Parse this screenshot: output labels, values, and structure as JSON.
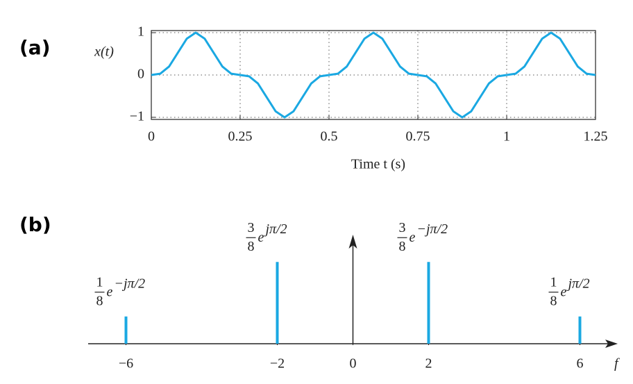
{
  "charts": [
    {
      "panel_label": "(a)",
      "chart_data": {
        "type": "line",
        "ylabel": "x(t)",
        "xlabel": "Time t (s)",
        "x": [
          0,
          0.025,
          0.05,
          0.075,
          0.1,
          0.125,
          0.15,
          0.175,
          0.2,
          0.225,
          0.25,
          0.275,
          0.3,
          0.325,
          0.35,
          0.375,
          0.4,
          0.425,
          0.45,
          0.475,
          0.5,
          0.525,
          0.55,
          0.575,
          0.6,
          0.625,
          0.65,
          0.675,
          0.7,
          0.725,
          0.75,
          0.775,
          0.8,
          0.825,
          0.85,
          0.875,
          0.9,
          0.925,
          0.95,
          0.975,
          1,
          1.025,
          1.05,
          1.075,
          1.1,
          1.125,
          1.15,
          1.175,
          1.2,
          1.225,
          1.25
        ],
        "series": [
          {
            "color": "#1aa8e2",
            "values": [
              0,
              0.03,
              0.2,
              0.53,
              0.86,
              1,
              0.86,
              0.53,
              0.2,
              0.03,
              0,
              -0.03,
              -0.2,
              -0.53,
              -0.86,
              -1,
              -0.86,
              -0.53,
              -0.2,
              -0.03,
              0,
              0.03,
              0.2,
              0.53,
              0.86,
              1,
              0.86,
              0.53,
              0.2,
              0.03,
              0,
              -0.03,
              -0.2,
              -0.53,
              -0.86,
              -1,
              -0.86,
              -0.53,
              -0.2,
              -0.03,
              0,
              0.03,
              0.2,
              0.53,
              0.86,
              1,
              0.86,
              0.53,
              0.2,
              0.03,
              0
            ]
          }
        ],
        "xlim": [
          0,
          1.25
        ],
        "xticks": [
          0,
          0.25,
          0.5,
          0.75,
          1,
          1.25
        ],
        "ylim": [
          -1.05,
          1.05
        ],
        "yticks": [
          1,
          0,
          {
            "value": -1,
            "label": "−1"
          }
        ],
        "grid": true
      }
    },
    {
      "panel_label": "(b)",
      "chart_data": {
        "type": "stem",
        "xlabel": "f",
        "x": [
          -6,
          -2,
          2,
          6
        ],
        "values": [
          0.125,
          0.375,
          0.375,
          0.125
        ],
        "color": "#1aa8e2",
        "value_labels": [
          {
            "numerator": "1",
            "denominator": "8",
            "base": "e",
            "exponent": "−jπ/2"
          },
          {
            "numerator": "3",
            "denominator": "8",
            "base": "e",
            "exponent": "jπ/2"
          },
          {
            "numerator": "3",
            "denominator": "8",
            "base": "e",
            "exponent": "−jπ/2"
          },
          {
            "numerator": "1",
            "denominator": "8",
            "base": "e",
            "exponent": "jπ/2"
          }
        ],
        "xlim": [
          -7,
          7
        ],
        "xticks": [
          {
            "value": -6,
            "label": "−6"
          },
          {
            "value": -2,
            "label": "−2"
          },
          0,
          2,
          6
        ],
        "ylim": [
          0,
          0.5
        ]
      }
    }
  ]
}
